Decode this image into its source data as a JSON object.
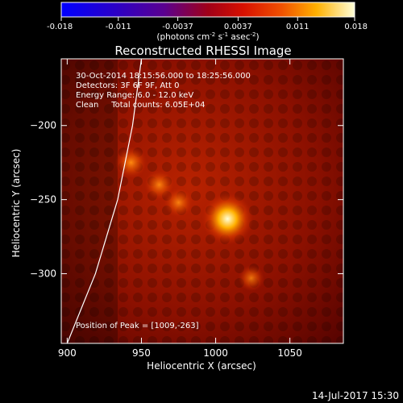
{
  "chart_data": {
    "type": "heatmap",
    "title": "Reconstructed RHESSI Image",
    "xlabel": "Heliocentric X (arcsec)",
    "ylabel": "Heliocentric Y (arcsec)",
    "xlim": [
      896,
      1086
    ],
    "ylim": [
      -347,
      -155
    ],
    "xticks": [
      900,
      950,
      1000,
      1050
    ],
    "yticks": [
      -200,
      -250,
      -300
    ],
    "colorbar": {
      "ticks": [
        "-0.018",
        "-0.011",
        "-0.0037",
        "0.0037",
        "0.011",
        "0.018"
      ],
      "range": [
        -0.018,
        0.018
      ],
      "units_prefix": "(photons cm",
      "units_exp1": "-2",
      "units_mid": " s",
      "units_exp2": "-1",
      "units_mid2": " asec",
      "units_exp3": "-2",
      "units_suffix": ")"
    },
    "annotations": [
      "30-Oct-2014 18:15:56.000 to 18:25:56.000",
      "Detectors: 3F 6F 9F, Att 0",
      "Energy Range: 6.0 - 12.0 keV",
      "Clean     Total counts: 6.05E+04"
    ],
    "peak_label": "Position of Peak = [1009,-263]",
    "peak": {
      "x": 1009,
      "y": -263
    },
    "sources": [
      {
        "x": 1008,
        "y": -263,
        "intensity": 0.018
      },
      {
        "x": 943,
        "y": -225,
        "intensity": 0.008
      },
      {
        "x": 962,
        "y": -240,
        "intensity": 0.007
      },
      {
        "x": 975,
        "y": -252,
        "intensity": 0.0065
      },
      {
        "x": 1024,
        "y": -303,
        "intensity": 0.005
      }
    ],
    "limb_curve": [
      [
        950,
        -155
      ],
      [
        944,
        -200
      ],
      [
        934,
        -250
      ],
      [
        919,
        -300
      ],
      [
        900,
        -347
      ]
    ],
    "grid": false
  },
  "footer": {
    "date": "14-Jul-2017 15:30"
  }
}
